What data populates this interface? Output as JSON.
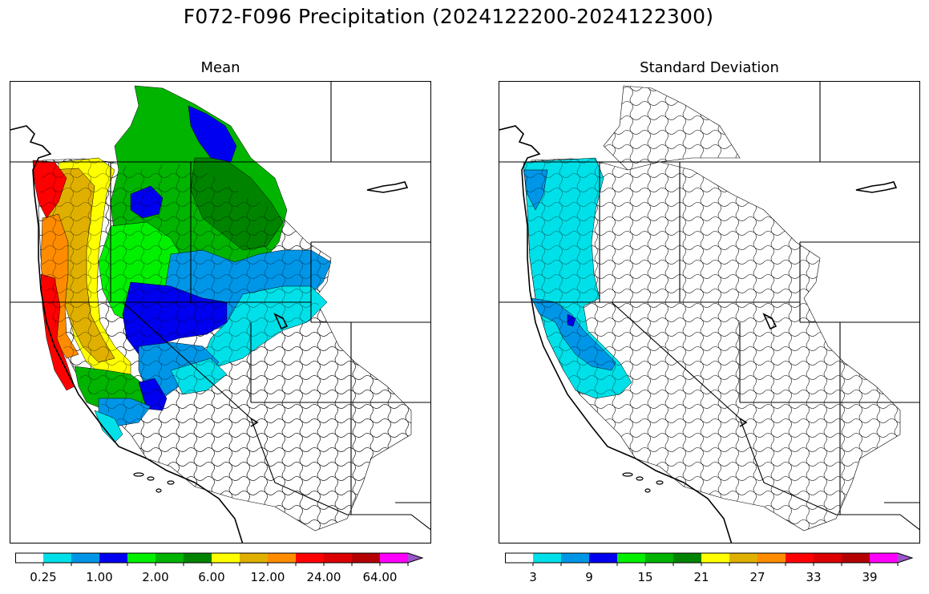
{
  "figure": {
    "title": "F072-F096 Precipitation (2024122200-2024122300)"
  },
  "panels": {
    "mean": {
      "title": "Mean",
      "colorbar": {
        "colors": [
          "#ffffff",
          "#00e0e8",
          "#0096e8",
          "#0000f0",
          "#00f000",
          "#00b400",
          "#008400",
          "#ffff00",
          "#e0b000",
          "#ff8c00",
          "#ff0000",
          "#dc0000",
          "#b40000",
          "#ff00ff",
          "#9a55c8"
        ],
        "tick_labels": [
          "0.25",
          "1.00",
          "2.00",
          "6.00",
          "12.00",
          "24.00",
          "64.00"
        ],
        "extend": "max"
      }
    },
    "std": {
      "title": "Standard Deviation",
      "colorbar": {
        "colors": [
          "#ffffff",
          "#00e0e8",
          "#0096e8",
          "#0000f0",
          "#00f000",
          "#00b400",
          "#008400",
          "#ffff00",
          "#e0b000",
          "#ff8c00",
          "#ff0000",
          "#dc0000",
          "#b40000",
          "#ff00ff",
          "#9a55c8"
        ],
        "tick_labels": [
          "3",
          "9",
          "15",
          "21",
          "27",
          "33",
          "39"
        ],
        "extend": "max"
      }
    }
  }
}
